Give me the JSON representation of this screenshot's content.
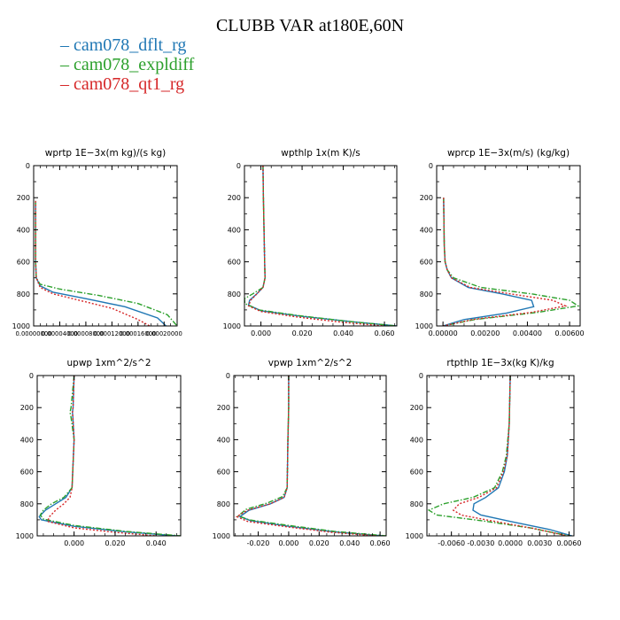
{
  "figure": {
    "title": "CLUBB VAR at180E,60N"
  },
  "legend": [
    {
      "name": "cam078_dflt_rg",
      "color": "#1f77b4",
      "dash": "solid"
    },
    {
      "name": "cam078_expldiff",
      "color": "#2ca02c",
      "dash": "dashdot"
    },
    {
      "name": "cam078_qt1_rg",
      "color": "#d62728",
      "dash": "dotted"
    }
  ],
  "chart_data": [
    {
      "type": "line",
      "title": "wprtp  1E−3x(m kg)/(s kg)",
      "xlim": [
        0,
        0.00022
      ],
      "ylim": [
        1000,
        0
      ],
      "xticks": [
        "0.00000000",
        "0.00004000",
        "0.00008000",
        "0.00012000",
        "0.00016000",
        "0.00020000"
      ],
      "xtick_values": [
        0,
        4e-05,
        8e-05,
        0.00012,
        0.00016,
        0.0002
      ],
      "yticks": [
        "0",
        "200",
        "400",
        "600",
        "800",
        "1000"
      ],
      "ytick_values": [
        0,
        200,
        400,
        600,
        800,
        1000
      ],
      "series": [
        {
          "name": "cam078_dflt_rg",
          "x": [
            3e-06,
            3e-06,
            3e-06,
            3e-06,
            3e-06,
            4e-06,
            1e-05,
            3e-05,
            8e-05,
            0.00014,
            0.00019,
            0.000203
          ],
          "y": [
            220,
            300,
            400,
            500,
            600,
            700,
            750,
            790,
            830,
            880,
            950,
            1000
          ]
        },
        {
          "name": "cam078_expldiff",
          "x": [
            3e-06,
            3e-06,
            3e-06,
            3e-06,
            3e-06,
            4e-06,
            1e-05,
            4e-05,
            0.0001,
            0.00016,
            0.000205,
            0.00022
          ],
          "y": [
            220,
            300,
            400,
            500,
            600,
            700,
            740,
            770,
            810,
            860,
            930,
            1000
          ]
        },
        {
          "name": "cam078_qt1_rg",
          "x": [
            3e-06,
            3e-06,
            3e-06,
            3e-06,
            3e-06,
            4e-06,
            1e-05,
            3e-05,
            7e-05,
            0.00012,
            0.00016,
            0.000178
          ],
          "y": [
            220,
            300,
            400,
            500,
            600,
            700,
            760,
            800,
            840,
            890,
            960,
            1000
          ]
        }
      ]
    },
    {
      "type": "line",
      "title": "wpthlp  1x(m K)/s",
      "xlim": [
        -0.008,
        0.066
      ],
      "ylim": [
        1000,
        0
      ],
      "xticks": [
        "0.000",
        "0.020",
        "0.040",
        "0.060"
      ],
      "xtick_values": [
        0,
        0.02,
        0.04,
        0.06
      ],
      "yticks": [
        "0",
        "200",
        "400",
        "600",
        "800",
        "1000"
      ],
      "ytick_values": [
        0,
        200,
        400,
        600,
        800,
        1000
      ],
      "series": [
        {
          "name": "cam078_dflt_rg",
          "x": [
            0.001,
            0.0012,
            0.0015,
            0.0018,
            0.002,
            0.001,
            -0.002,
            -0.0055,
            -0.006,
            0.0,
            0.02,
            0.045,
            0.066
          ],
          "y": [
            0,
            200,
            400,
            600,
            700,
            760,
            800,
            840,
            870,
            905,
            940,
            975,
            1000
          ]
        },
        {
          "name": "cam078_expldiff",
          "x": [
            0.001,
            0.0012,
            0.0015,
            0.0018,
            0.002,
            0.001,
            -0.004,
            -0.008,
            -0.0078,
            -0.001,
            0.018,
            0.043,
            0.066
          ],
          "y": [
            0,
            200,
            400,
            600,
            700,
            760,
            800,
            830,
            860,
            900,
            935,
            972,
            1000
          ]
        },
        {
          "name": "cam078_qt1_rg",
          "x": [
            0.001,
            0.0012,
            0.0015,
            0.0018,
            0.002,
            0.001,
            -0.002,
            -0.005,
            -0.006,
            0.0,
            0.018,
            0.04,
            0.06
          ],
          "y": [
            0,
            200,
            400,
            600,
            700,
            760,
            800,
            840,
            875,
            910,
            945,
            978,
            1000
          ]
        }
      ]
    },
    {
      "type": "line",
      "title": "wprcp  1E−3x(m/s) (kg/kg)",
      "xlim": [
        -0.0003,
        0.0065
      ],
      "ylim": [
        1000,
        0
      ],
      "xticks": [
        "0.00000",
        "0.00200",
        "0.00400",
        "0.00600"
      ],
      "xtick_values": [
        0,
        0.002,
        0.004,
        0.006
      ],
      "yticks": [
        "0",
        "200",
        "400",
        "600",
        "800",
        "1000"
      ],
      "ytick_values": [
        0,
        200,
        400,
        600,
        800,
        1000
      ],
      "series": [
        {
          "name": "cam078_dflt_rg",
          "x": [
            3e-05,
            4e-05,
            6e-05,
            0.0001,
            0.0002,
            0.0004,
            0.0012,
            0.0028,
            0.0042,
            0.0043,
            0.003,
            0.001,
            0.0
          ],
          "y": [
            200,
            300,
            500,
            600,
            650,
            700,
            760,
            800,
            840,
            880,
            920,
            960,
            1000
          ]
        },
        {
          "name": "cam078_expldiff",
          "x": [
            3e-05,
            4e-05,
            6e-05,
            0.0001,
            0.0002,
            0.0005,
            0.0018,
            0.0042,
            0.006,
            0.0064,
            0.0045,
            0.0015,
            0.0
          ],
          "y": [
            200,
            300,
            500,
            600,
            650,
            700,
            760,
            800,
            840,
            875,
            915,
            960,
            1000
          ]
        },
        {
          "name": "cam078_qt1_rg",
          "x": [
            3e-05,
            4e-05,
            6e-05,
            0.0001,
            0.0002,
            0.0004,
            0.0013,
            0.0032,
            0.0052,
            0.0058,
            0.0042,
            0.0014,
            0.0
          ],
          "y": [
            200,
            300,
            500,
            600,
            650,
            700,
            760,
            800,
            840,
            875,
            915,
            960,
            1000
          ]
        }
      ]
    },
    {
      "type": "line",
      "title": "upwp  1xm^2/s^2",
      "xlim": [
        -0.018,
        0.052
      ],
      "ylim": [
        1000,
        0
      ],
      "xticks": [
        "0.000",
        "0.020",
        "0.040"
      ],
      "xtick_values": [
        0,
        0.02,
        0.04
      ],
      "yticks": [
        "0",
        "200",
        "400",
        "600",
        "800",
        "1000"
      ],
      "ytick_values": [
        0,
        200,
        400,
        600,
        800,
        1000
      ],
      "series": [
        {
          "name": "cam078_dflt_rg",
          "x": [
            0.0,
            -0.0005,
            -0.0008,
            -0.0006,
            0.0,
            -0.001,
            -0.004,
            -0.009,
            -0.014,
            -0.017,
            -0.016,
            0.0,
            0.025,
            0.05
          ],
          "y": [
            0,
            200,
            230,
            260,
            400,
            700,
            760,
            800,
            840,
            880,
            900,
            940,
            975,
            1000
          ]
        },
        {
          "name": "cam078_expldiff",
          "x": [
            0.0,
            -0.0015,
            -0.002,
            -0.0015,
            0.0,
            -0.001,
            -0.005,
            -0.011,
            -0.015,
            -0.0165,
            -0.015,
            0.0,
            0.025,
            0.052
          ],
          "y": [
            0,
            200,
            230,
            260,
            400,
            700,
            760,
            800,
            840,
            870,
            895,
            935,
            972,
            1000
          ]
        },
        {
          "name": "cam078_qt1_rg",
          "x": [
            0.0,
            -0.0005,
            -0.0008,
            -0.0006,
            0.0,
            -0.001,
            -0.002,
            -0.005,
            -0.009,
            -0.012,
            -0.013,
            0.0,
            0.02,
            0.04
          ],
          "y": [
            0,
            200,
            230,
            260,
            400,
            700,
            760,
            800,
            840,
            880,
            910,
            950,
            978,
            1000
          ]
        }
      ]
    },
    {
      "type": "line",
      "title": "vpwp  1xm^2/s^2",
      "xlim": [
        -0.036,
        0.064
      ],
      "ylim": [
        1000,
        0
      ],
      "xticks": [
        "-0.020",
        "0.000",
        "0.020",
        "0.040",
        "0.060"
      ],
      "xtick_values": [
        -0.02,
        0,
        0.02,
        0.04,
        0.06
      ],
      "yticks": [
        "0",
        "200",
        "400",
        "600",
        "800",
        "1000"
      ],
      "ytick_values": [
        0,
        200,
        400,
        600,
        800,
        1000
      ],
      "series": [
        {
          "name": "cam078_dflt_rg",
          "x": [
            0.0,
            0.0,
            -0.0005,
            -0.001,
            -0.003,
            -0.012,
            -0.026,
            -0.032,
            -0.025,
            0.0,
            0.03,
            0.062
          ],
          "y": [
            0,
            200,
            400,
            700,
            760,
            800,
            840,
            880,
            905,
            940,
            975,
            1000
          ]
        },
        {
          "name": "cam078_expldiff",
          "x": [
            0.0,
            0.0,
            -0.0005,
            -0.001,
            -0.004,
            -0.014,
            -0.028,
            -0.033,
            -0.026,
            0.0,
            0.03,
            0.064
          ],
          "y": [
            0,
            200,
            400,
            700,
            755,
            795,
            835,
            875,
            900,
            935,
            972,
            1000
          ]
        },
        {
          "name": "cam078_qt1_rg",
          "x": [
            0.0,
            0.0,
            -0.0005,
            -0.001,
            -0.003,
            -0.012,
            -0.027,
            -0.034,
            -0.027,
            0.0,
            0.028,
            0.058
          ],
          "y": [
            0,
            200,
            400,
            700,
            760,
            800,
            840,
            880,
            910,
            945,
            978,
            1000
          ]
        }
      ]
    },
    {
      "type": "line",
      "title": "rtpthlp  1E−3x(kg K)/kg",
      "xlim": [
        -0.0085,
        0.0065
      ],
      "ylim": [
        1000,
        0
      ],
      "xticks": [
        "-0.0060",
        "-0.0030",
        "0.0000",
        "0.0030",
        "0.0060"
      ],
      "xtick_values": [
        -0.006,
        -0.003,
        0,
        0.003,
        0.006
      ],
      "yticks": [
        "0",
        "200",
        "400",
        "600",
        "800",
        "1000"
      ],
      "ytick_values": [
        0,
        200,
        400,
        600,
        800,
        1000
      ],
      "series": [
        {
          "name": "cam078_dflt_rg",
          "x": [
            0.0,
            -0.0001,
            -0.0003,
            -0.0006,
            -0.0012,
            -0.0025,
            -0.0037,
            -0.0038,
            -0.003,
            0.0,
            0.004,
            0.0063
          ],
          "y": [
            0,
            300,
            500,
            600,
            700,
            760,
            800,
            840,
            870,
            910,
            960,
            1000
          ]
        },
        {
          "name": "cam078_expldiff",
          "x": [
            0.0,
            -0.0001,
            -0.0004,
            -0.0008,
            -0.0016,
            -0.0038,
            -0.0068,
            -0.0083,
            -0.0075,
            -0.003,
            0.002,
            0.006
          ],
          "y": [
            0,
            300,
            500,
            600,
            700,
            760,
            800,
            840,
            870,
            905,
            950,
            1000
          ]
        },
        {
          "name": "cam078_qt1_rg",
          "x": [
            0.0,
            -0.0001,
            -0.0003,
            -0.0007,
            -0.0014,
            -0.0032,
            -0.0052,
            -0.0058,
            -0.005,
            -0.002,
            0.0025,
            0.0058
          ],
          "y": [
            0,
            300,
            500,
            600,
            700,
            760,
            800,
            840,
            870,
            905,
            955,
            1000
          ]
        }
      ]
    }
  ]
}
